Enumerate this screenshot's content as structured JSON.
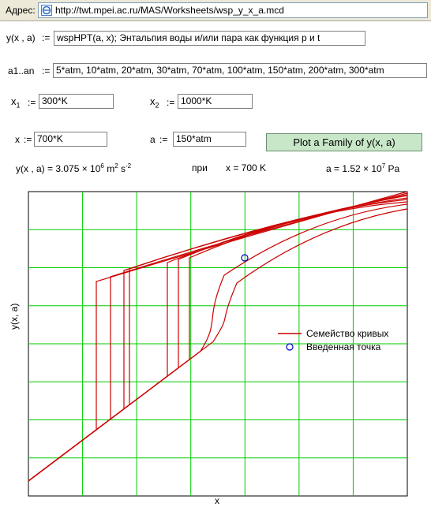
{
  "address_bar": {
    "label": "Адрес:",
    "url": "http://twt.mpei.ac.ru/MAS/Worksheets/wsp_y_x_a.mcd"
  },
  "function_def": {
    "lhs": "y(x , a)",
    "assign": ":=",
    "value": "wspHPT(a, x);  Энтальпия воды и/или пара как функция р и t"
  },
  "family_def": {
    "lhs": "a1..an",
    "assign": ":=",
    "value": "5*atm, 10*atm, 20*atm, 30*atm, 70*atm, 100*atm, 150*atm, 200*atm, 300*atm"
  },
  "x1": {
    "name": "x",
    "sub": "1",
    "assign": ":=",
    "value": "300*K"
  },
  "x2": {
    "name": "x",
    "sub": "2",
    "assign": ":=",
    "value": "1000*K"
  },
  "x_input": {
    "name": "x",
    "assign": ":=",
    "value": "700*K"
  },
  "a_input": {
    "name": "a",
    "assign": ":=",
    "value": "150*atm"
  },
  "plot_button": {
    "label": "Plot a Family of y(x, a)"
  },
  "result": {
    "lhs": "y(x , a) = 3.075 × 10",
    "exp": "6",
    "units": " m",
    "units_exp1": "2",
    "units2": " s",
    "units_exp2": "-2",
    "at_label": "при",
    "x_text": "x = 700 K",
    "a_text": "a = 1.52 × 10",
    "a_exp": "7",
    "a_unit": " Pa"
  },
  "chart_data": {
    "type": "line",
    "xlabel": "x",
    "ylabel": "y(x, a)",
    "grid": true,
    "legend_position": "right",
    "legend": [
      "Семейство кривых",
      "Введенная точка"
    ],
    "series_color": "#cc0000",
    "grid_color": "#00cc00",
    "marker_color": "#0000cc",
    "family_count": 9,
    "point": {
      "x": "700 K",
      "a": "150 atm"
    }
  }
}
